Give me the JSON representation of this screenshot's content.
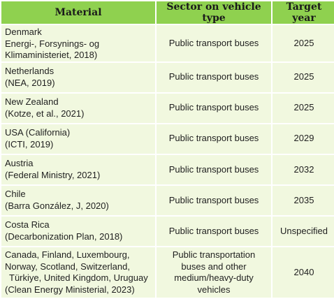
{
  "table": {
    "headers": {
      "material": "Material",
      "sector": "Sector on vehicle type",
      "year": "Target year"
    },
    "rows": [
      {
        "material": [
          "Denmark",
          "Energi-, Forsynings- og",
          "Klimaministeriet, 2018)"
        ],
        "sector": [
          "Public transport buses"
        ],
        "year": "2025"
      },
      {
        "material": [
          "Netherlands",
          "(NEA, 2019)"
        ],
        "sector": [
          "Public transport buses"
        ],
        "year": "2025"
      },
      {
        "material": [
          "New Zealand",
          "(Kotze, et al., 2021)"
        ],
        "sector": [
          "Public transport buses"
        ],
        "year": "2025"
      },
      {
        "material": [
          "USA (California)",
          "(ICTI, 2019)"
        ],
        "sector": [
          "Public transport buses"
        ],
        "year": "2029"
      },
      {
        "material": [
          "Austria",
          "(Federal Ministry, 2021)"
        ],
        "sector": [
          "Public transport buses"
        ],
        "year": "2032"
      },
      {
        "material": [
          "Chile",
          "(Barra González, J, 2020)"
        ],
        "sector": [
          "Public transport buses"
        ],
        "year": "2035"
      },
      {
        "material": [
          "Costa Rica",
          "(Decarbonization Plan, 2018)"
        ],
        "sector": [
          "Public transport buses"
        ],
        "year": "Unspecified"
      },
      {
        "material": [
          "Canada, Finland, Luxembourg,",
          "Norway, Scotland, Switzerland,",
          "Türkiye, United Kingdom, Uruguay",
          "(Clean Energy Ministerial, 2023)"
        ],
        "sector": [
          "Public transportation",
          "buses and other",
          "medium/heavy-duty",
          "vehicles"
        ],
        "year": "2040"
      }
    ],
    "colors": {
      "header_bg": "#8fd14f",
      "cell_bg": "#f1f8df"
    }
  }
}
